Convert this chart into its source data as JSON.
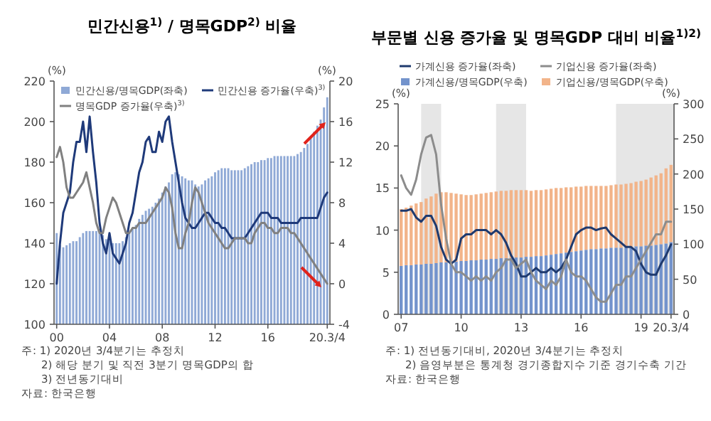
{
  "chart_data": [
    {
      "type": "bar",
      "title": "민간신용$^{1)}$ / 명목GDP$^{2)}$  비율",
      "ylabel": "(%)",
      "y2label": "(%)",
      "x": [
        2000,
        2000.25,
        2000.5,
        2000.75,
        2001,
        2001.25,
        2001.5,
        2001.75,
        2002,
        2002.25,
        2002.5,
        2002.75,
        2003,
        2003.25,
        2003.5,
        2003.75,
        2004,
        2004.25,
        2004.5,
        2004.75,
        2005,
        2005.25,
        2005.5,
        2005.75,
        2006,
        2006.25,
        2006.5,
        2006.75,
        2007,
        2007.25,
        2007.5,
        2007.75,
        2008,
        2008.25,
        2008.5,
        2008.75,
        2009,
        2009.25,
        2009.5,
        2009.75,
        2010,
        2010.25,
        2010.5,
        2010.75,
        2011,
        2011.25,
        2011.5,
        2011.75,
        2012,
        2012.25,
        2012.5,
        2012.75,
        2013,
        2013.25,
        2013.5,
        2013.75,
        2014,
        2014.25,
        2014.5,
        2014.75,
        2015,
        2015.25,
        2015.5,
        2015.75,
        2016,
        2016.25,
        2016.5,
        2016.75,
        2017,
        2017.25,
        2017.5,
        2017.75,
        2018,
        2018.25,
        2018.5,
        2018.75,
        2019,
        2019.25,
        2019.5,
        2019.75,
        2020,
        2020.25,
        2020.5
      ],
      "xlim": [
        1999.8,
        2020.7
      ],
      "xticks": [
        {
          "value": 2000,
          "label": "00"
        },
        {
          "value": 2004,
          "label": "04"
        },
        {
          "value": 2008,
          "label": "08"
        },
        {
          "value": 2012,
          "label": "12"
        },
        {
          "value": 2016,
          "label": "16"
        },
        {
          "value": 2020.5,
          "label": "20.3/4"
        }
      ],
      "ylim": [
        100,
        220
      ],
      "yticks": [
        100,
        120,
        140,
        160,
        180,
        200,
        220
      ],
      "y2lim": [
        -4,
        20
      ],
      "y2ticks": [
        -4,
        0,
        4,
        8,
        12,
        16,
        20
      ],
      "legend": "top left",
      "series": [
        {
          "name": "민간신용/명목GDP(좌축)",
          "color": "#8fa9d6",
          "values": [
            145,
            139,
            138,
            139,
            140,
            141,
            141,
            143,
            145,
            146,
            146,
            146,
            146,
            145,
            144,
            142,
            141,
            140,
            140,
            140,
            141,
            143,
            145,
            147,
            149,
            152,
            154,
            156,
            157,
            158,
            160,
            162,
            165,
            168,
            170,
            174,
            175,
            174,
            173,
            172,
            171,
            171,
            169,
            168,
            169,
            171,
            172,
            173,
            175,
            176,
            177,
            177,
            177,
            176,
            176,
            176,
            176,
            177,
            178,
            179,
            180,
            180,
            181,
            181,
            182,
            182,
            183,
            183,
            183,
            183,
            183,
            183,
            183,
            184,
            185,
            187,
            189,
            192,
            195,
            198,
            201,
            207,
            212
          ]
        },
        {
          "name": "민간신용 증가율(우축)$^{3)}$",
          "type": "line",
          "axis": "y2",
          "color": "#1f3a7a",
          "values": [
            0,
            4,
            7,
            8,
            9,
            12,
            14,
            14,
            16,
            13,
            16.5,
            13,
            10,
            6,
            4,
            3,
            5,
            3,
            2.5,
            2,
            3,
            4,
            6,
            7,
            9,
            11,
            12,
            14,
            14.5,
            13,
            13,
            15,
            14,
            16,
            16.5,
            14,
            12,
            10,
            8,
            6.5,
            6,
            5.5,
            5.5,
            6,
            6.5,
            7,
            7,
            6.5,
            6,
            6,
            5.5,
            5.5,
            5,
            4.5,
            4.5,
            4.5,
            4.5,
            4.5,
            5,
            5.5,
            6,
            6.5,
            7,
            7,
            7,
            6.5,
            6.5,
            6.5,
            6,
            6,
            6,
            6,
            6,
            6,
            6.5,
            6.5,
            6.5,
            6.5,
            6.5,
            6.5,
            7.5,
            8.5,
            9
          ]
        },
        {
          "name": "명목GDP 증가율(우축)$^{3)}$",
          "type": "line",
          "axis": "y2",
          "color": "#808080",
          "values": [
            12.5,
            13.5,
            12,
            9.5,
            8.5,
            8.5,
            9,
            9.5,
            10,
            11,
            9.5,
            8,
            6,
            5,
            5,
            6.5,
            7.5,
            8.5,
            8,
            7,
            6,
            5,
            5,
            5.5,
            5.5,
            6,
            6,
            6,
            6.5,
            7,
            7.5,
            8,
            8.5,
            9.5,
            9,
            7.5,
            5,
            3.5,
            3.5,
            5,
            6,
            8,
            9.5,
            9,
            8,
            7,
            6,
            5.5,
            5,
            4.5,
            4,
            3.5,
            3.5,
            4,
            4.5,
            4.5,
            4.5,
            4.5,
            4,
            4,
            5,
            5.5,
            6,
            6,
            5.5,
            5.5,
            5,
            5,
            5.5,
            5.5,
            5.5,
            5,
            5,
            4.5,
            4,
            3.5,
            3,
            2.5,
            2,
            1.5,
            1,
            0.5,
            0
          ]
        }
      ],
      "annotations": [
        "주: 1) 2020년 3/4분기는 추정치",
        "2) 해당 분기 및 직전 3분기 명목GDP의 합",
        "3) 전년동기대비",
        "자료: 한국은행"
      ]
    },
    {
      "type": "bar",
      "title": "부문별 신용 증가율 및 명목GDP 대비 비율$^{1)2)}$",
      "ylabel": "(%)",
      "y2label": "(%)",
      "stacked": true,
      "x": [
        2007,
        2007.25,
        2007.5,
        2007.75,
        2008,
        2008.25,
        2008.5,
        2008.75,
        2009,
        2009.25,
        2009.5,
        2009.75,
        2010,
        2010.25,
        2010.5,
        2010.75,
        2011,
        2011.25,
        2011.5,
        2011.75,
        2012,
        2012.25,
        2012.5,
        2012.75,
        2013,
        2013.25,
        2013.5,
        2013.75,
        2014,
        2014.25,
        2014.5,
        2014.75,
        2015,
        2015.25,
        2015.5,
        2015.75,
        2016,
        2016.25,
        2016.5,
        2016.75,
        2017,
        2017.25,
        2017.5,
        2017.75,
        2018,
        2018.25,
        2018.5,
        2018.75,
        2019,
        2019.25,
        2019.5,
        2019.75,
        2020,
        2020.25,
        2020.5
      ],
      "xlim": [
        2006.85,
        2020.65
      ],
      "xticks": [
        {
          "value": 2007,
          "label": "07"
        },
        {
          "value": 2010,
          "label": "10"
        },
        {
          "value": 2013,
          "label": "13"
        },
        {
          "value": 2016,
          "label": "16"
        },
        {
          "value": 2019,
          "label": "19"
        },
        {
          "value": 2020.5,
          "label": "20.3/4"
        }
      ],
      "ylim": [
        0,
        25
      ],
      "yticks": [
        0,
        5,
        10,
        15,
        20,
        25
      ],
      "y2lim": [
        0,
        300
      ],
      "y2ticks": [
        0,
        50,
        100,
        150,
        200,
        250,
        300
      ],
      "legend": "top",
      "bands": [
        {
          "axis": "x",
          "from": 2008,
          "to": 2009,
          "color": "#e6e6e6"
        },
        {
          "axis": "x",
          "from": 2011.75,
          "to": 2013.25,
          "color": "#e6e6e6"
        },
        {
          "axis": "x",
          "from": 2017.75,
          "to": 2020.65,
          "color": "#e6e6e6"
        }
      ],
      "series": [
        {
          "name": "가계신용 증가율(좌축)",
          "type": "line",
          "color": "#1f3a6e",
          "values": [
            12.3,
            12.3,
            12.5,
            11.5,
            11,
            11.7,
            11.7,
            10.5,
            8,
            6.5,
            6,
            6.5,
            9,
            9.5,
            9.5,
            10,
            10,
            10,
            9.5,
            10,
            9.5,
            8.5,
            7,
            6,
            4.5,
            4.5,
            5,
            5.5,
            5,
            5,
            5.5,
            5,
            5.5,
            6.5,
            8,
            9.5,
            10,
            10.3,
            10.3,
            10,
            10.2,
            10.3,
            9.5,
            9,
            8.5,
            8,
            8,
            7.5,
            6,
            5,
            4.7,
            4.7,
            6,
            7,
            8.3
          ]
        },
        {
          "name": "기업신용 증가율(좌축)",
          "type": "line",
          "color": "#8c8c8c",
          "values": [
            16.5,
            15,
            14.2,
            16,
            19,
            21,
            21.3,
            19,
            13,
            9,
            6,
            5,
            5,
            4.5,
            4,
            4.5,
            4,
            4.5,
            4,
            5,
            5.5,
            6.5,
            6.5,
            5.5,
            6,
            6.5,
            5,
            4,
            3.5,
            3,
            4,
            3.5,
            4.5,
            6.5,
            5,
            4.5,
            4.5,
            4,
            3,
            2,
            1.5,
            1.5,
            2.5,
            3.5,
            3.5,
            4.5,
            4.5,
            5.5,
            6.5,
            7.5,
            8.5,
            9.5,
            9.5,
            11,
            11
          ]
        },
        {
          "name": "가계신용/명목GDP(우축)",
          "axis": "y2",
          "color": "#7393cc",
          "values": [
            69,
            70,
            70,
            71,
            71,
            72,
            72,
            73,
            74,
            74,
            75,
            75,
            76,
            76,
            77,
            77,
            78,
            78,
            79,
            79,
            80,
            80,
            80,
            81,
            81,
            82,
            82,
            83,
            83,
            84,
            85,
            86,
            87,
            88,
            89,
            90,
            91,
            92,
            93,
            93,
            94,
            94,
            95,
            95,
            95,
            96,
            96,
            97,
            97,
            98,
            98,
            99,
            100,
            101,
            103
          ]
        },
        {
          "name": "기업신용/명목GDP(우축)",
          "axis": "y2",
          "color": "#f2b48a",
          "values": [
            81,
            82,
            85,
            87,
            89,
            93,
            96,
            99,
            100,
            100,
            98,
            97,
            95,
            94,
            93,
            94,
            94,
            95,
            95,
            96,
            96,
            96,
            97,
            96,
            96,
            95,
            94,
            94,
            94,
            94,
            94,
            94,
            93,
            93,
            92,
            92,
            91,
            91,
            90,
            90,
            89,
            89,
            89,
            90,
            90,
            90,
            91,
            92,
            93,
            94,
            97,
            99,
            101,
            107,
            110
          ]
        }
      ],
      "annotations": [
        "주: 1) 전년동기대비, 2020년 3/4분기는 추정치",
        "2) 음영부분은 통계청 경기종합지수 기준 경기수축 기간",
        "자료: 한국은행"
      ]
    }
  ]
}
